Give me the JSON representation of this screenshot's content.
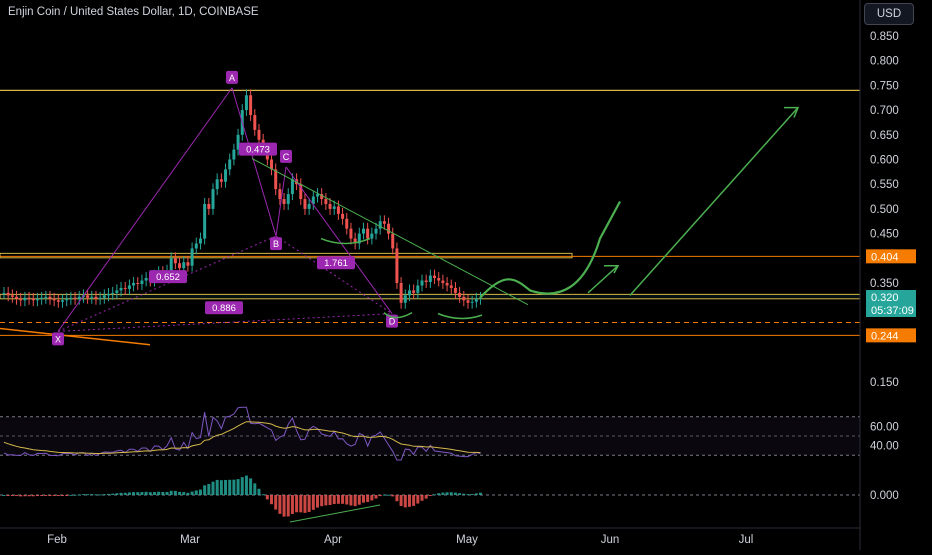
{
  "header": {
    "title": "Enjin Coin / United States Dollar, 1D, COINBASE",
    "currency": "USD"
  },
  "colors": {
    "up": "#26a69a",
    "down": "#ef5350",
    "yellow": "#d4b94a",
    "orange": "#f57c00",
    "green": "#4caf50",
    "purple": "#9c27b0",
    "rsi": "#7e57c2",
    "rsi_ma": "#d4b94a",
    "accent": "#26a69a"
  },
  "chart_data": [
    {
      "type": "candlestick",
      "title": "Enjin Coin / United States Dollar, 1D, COINBASE",
      "y_ticks": [
        0.85,
        0.8,
        0.75,
        0.7,
        0.65,
        0.6,
        0.55,
        0.5,
        0.45,
        0.35,
        0.15
      ],
      "y_tick_labels": [
        "0.850",
        "0.800",
        "0.750",
        "0.700",
        "0.650",
        "0.600",
        "0.550",
        "0.500",
        "0.450",
        "0.350",
        "0.150"
      ],
      "x_tick_labels": [
        "Feb",
        "Mar",
        "Apr",
        "May",
        "Jun",
        "Jul"
      ],
      "price_labels": [
        {
          "text": "0.404",
          "value": 0.404,
          "color": "#f57c00"
        },
        {
          "text": "0.320",
          "value": 0.32,
          "color": "#26a69a"
        },
        {
          "text": "05:37:09",
          "value": 0.3,
          "color": "#26a69a"
        },
        {
          "text": "0.244",
          "value": 0.244,
          "color": "#f57c00"
        }
      ],
      "closes": [
        0.33,
        0.325,
        0.322,
        0.318,
        0.315,
        0.32,
        0.318,
        0.315,
        0.318,
        0.32,
        0.322,
        0.318,
        0.315,
        0.312,
        0.315,
        0.318,
        0.32,
        0.318,
        0.322,
        0.325,
        0.32,
        0.322,
        0.318,
        0.32,
        0.325,
        0.328,
        0.33,
        0.335,
        0.34,
        0.338,
        0.345,
        0.35,
        0.348,
        0.355,
        0.36,
        0.355,
        0.365,
        0.372,
        0.368,
        0.375,
        0.4,
        0.39,
        0.38,
        0.392,
        0.385,
        0.42,
        0.43,
        0.44,
        0.51,
        0.5,
        0.54,
        0.56,
        0.555,
        0.58,
        0.6,
        0.62,
        0.65,
        0.7,
        0.73,
        0.69,
        0.66,
        0.64,
        0.62,
        0.6,
        0.58,
        0.54,
        0.52,
        0.51,
        0.53,
        0.56,
        0.55,
        0.52,
        0.5,
        0.51,
        0.525,
        0.53,
        0.52,
        0.51,
        0.5,
        0.505,
        0.49,
        0.48,
        0.46,
        0.44,
        0.43,
        0.45,
        0.46,
        0.44,
        0.45,
        0.46,
        0.475,
        0.47,
        0.45,
        0.42,
        0.35,
        0.31,
        0.325,
        0.335,
        0.33,
        0.345,
        0.355,
        0.352,
        0.365,
        0.36,
        0.355,
        0.35,
        0.345,
        0.34,
        0.33,
        0.322,
        0.315,
        0.31,
        0.312,
        0.318,
        0.32
      ],
      "pattern_labels": [
        "X",
        "A",
        "B",
        "C",
        "D"
      ],
      "fib_labels": [
        "0.473",
        "1.761",
        "0.652",
        "0.886"
      ],
      "levels": {
        "horizontal_yellow": [
          0.74,
          0.406,
          0.325
        ],
        "horizontal_orange": [
          0.404,
          0.244
        ]
      }
    },
    {
      "type": "line",
      "name": "rsi",
      "y_ticks": [
        60.0,
        40.0
      ],
      "y_tick_labels": [
        "60.00",
        "40.00"
      ],
      "band": [
        70,
        30
      ]
    },
    {
      "type": "bar",
      "name": "macd-histogram",
      "y_ticks": [
        0.0
      ],
      "y_tick_labels": [
        "0.000"
      ]
    }
  ]
}
